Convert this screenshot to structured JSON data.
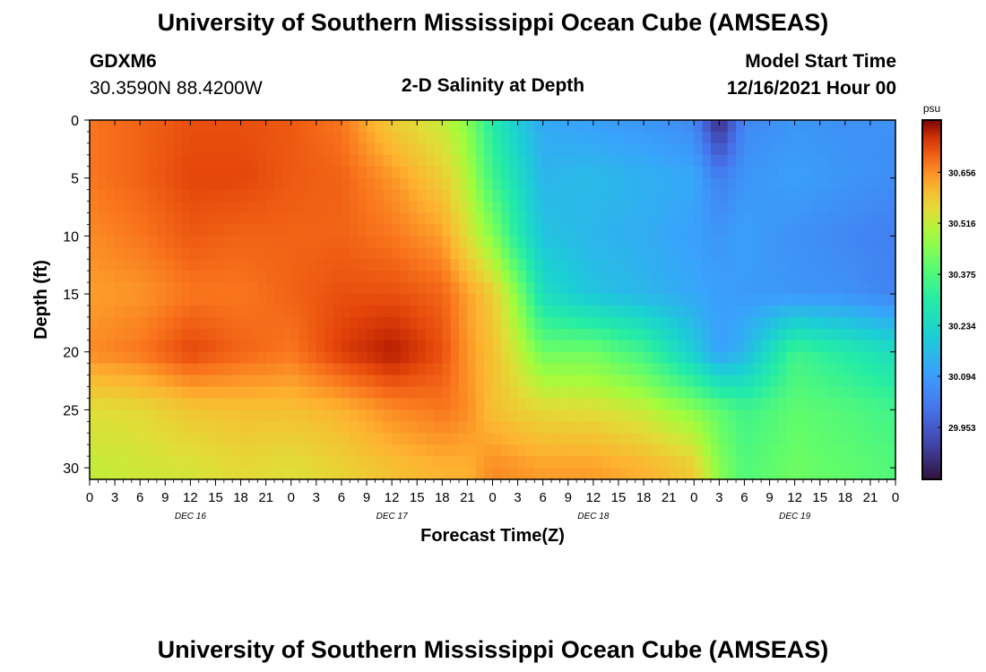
{
  "page": {
    "title": "University of Southern Mississippi Ocean Cube (AMSEAS)",
    "title_repeat": "University of Southern Mississippi Ocean Cube (AMSEAS)",
    "station": "GDXM6",
    "location": "30.3590N  88.4200W",
    "plot_title": "2-D Salinity at Depth",
    "model_start_label": "Model Start Time",
    "model_start_value": "12/16/2021 Hour 00"
  },
  "chart_data": {
    "type": "heatmap",
    "title": "2-D Salinity at Depth",
    "xlabel": "Forecast Time(Z)",
    "ylabel": "Depth (ft)",
    "x_range_hours": [
      0,
      96
    ],
    "x_tick_step_hours": 3,
    "x_tick_labels": [
      "0",
      "3",
      "6",
      "9",
      "12",
      "15",
      "18",
      "21",
      "0",
      "3",
      "6",
      "9",
      "12",
      "15",
      "18",
      "21",
      "0",
      "3",
      "6",
      "9",
      "12",
      "15",
      "18",
      "21",
      "0",
      "3",
      "6",
      "9",
      "12",
      "15",
      "18",
      "21",
      "0"
    ],
    "day_labels": [
      {
        "label": "DEC 16",
        "hour": 12
      },
      {
        "label": "DEC 17",
        "hour": 36
      },
      {
        "label": "DEC 18",
        "hour": 60
      },
      {
        "label": "DEC 19",
        "hour": 84
      }
    ],
    "y_range_ft": [
      0,
      31
    ],
    "y_ticks": [
      0,
      5,
      10,
      15,
      20,
      25,
      30
    ],
    "y_inverted": true,
    "colorbar": {
      "unit": "psu",
      "min": 29.81,
      "max": 30.8,
      "tick_values": [
        30.656,
        30.516,
        30.375,
        30.234,
        30.094,
        29.953
      ],
      "tick_labels": [
        "30.656",
        "30.516",
        "30.375",
        "30.234",
        "30.094",
        "29.953"
      ]
    },
    "salinity_field": {
      "hours": [
        0,
        6,
        12,
        18,
        24,
        30,
        36,
        42,
        45,
        48,
        51,
        54,
        60,
        66,
        72,
        75,
        78,
        84,
        90,
        96
      ],
      "depths_ft": [
        0,
        5,
        10,
        15,
        20,
        25,
        30
      ],
      "values_psu": [
        [
          30.68,
          30.7,
          30.72,
          30.72,
          30.71,
          30.68,
          30.58,
          30.52,
          30.45,
          30.3,
          30.2,
          30.12,
          30.1,
          30.08,
          30.05,
          29.85,
          30.05,
          30.08,
          30.07,
          30.07
        ],
        [
          30.68,
          30.7,
          30.73,
          30.73,
          30.71,
          30.7,
          30.65,
          30.58,
          30.5,
          30.35,
          30.25,
          30.15,
          30.16,
          30.14,
          30.12,
          30.03,
          30.08,
          30.1,
          30.08,
          30.06
        ],
        [
          30.66,
          30.68,
          30.71,
          30.7,
          30.7,
          30.7,
          30.68,
          30.64,
          30.55,
          30.45,
          30.3,
          30.18,
          30.15,
          30.13,
          30.1,
          30.08,
          30.1,
          30.07,
          30.05,
          30.03
        ],
        [
          30.64,
          30.65,
          30.68,
          30.68,
          30.7,
          30.72,
          30.72,
          30.7,
          30.64,
          30.58,
          30.45,
          30.25,
          30.18,
          30.15,
          30.12,
          30.1,
          30.09,
          30.08,
          30.07,
          30.04
        ],
        [
          30.66,
          30.68,
          30.73,
          30.7,
          30.68,
          30.74,
          30.78,
          30.72,
          30.65,
          30.6,
          30.52,
          30.42,
          30.42,
          30.35,
          30.2,
          30.1,
          30.15,
          30.35,
          30.3,
          30.25
        ],
        [
          30.55,
          30.56,
          30.59,
          30.6,
          30.6,
          30.62,
          30.66,
          30.68,
          30.66,
          30.6,
          30.58,
          30.56,
          30.55,
          30.52,
          30.45,
          30.4,
          30.35,
          30.4,
          30.38,
          30.35
        ],
        [
          30.52,
          30.53,
          30.54,
          30.56,
          30.55,
          30.57,
          30.6,
          30.62,
          30.62,
          30.66,
          30.65,
          30.64,
          30.64,
          30.62,
          30.58,
          30.45,
          30.38,
          30.42,
          30.4,
          30.38
        ]
      ]
    }
  }
}
